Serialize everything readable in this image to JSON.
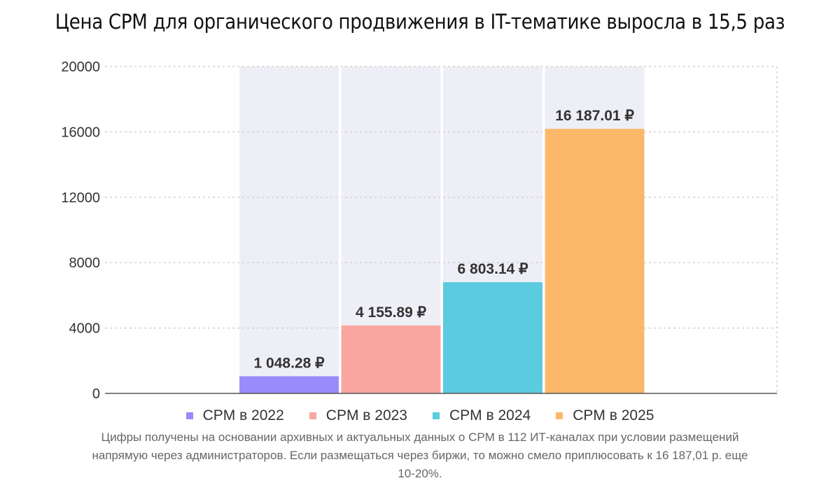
{
  "title": "Цена CPM для органического продвижения в IT-тематике выросла в 15,5 раз",
  "chart_data": {
    "type": "bar",
    "title": "Цена CPM для органического продвижения в IT-тематике выросла в 15,5 раз",
    "xlabel": "",
    "ylabel": "",
    "ylim": [
      0,
      20000
    ],
    "yticks": [
      0,
      4000,
      8000,
      12000,
      16000,
      20000
    ],
    "ytick_labels": [
      "0",
      "4000",
      "8000",
      "12000",
      "16000",
      "20000"
    ],
    "grid": true,
    "legend_position": "bottom",
    "series": [
      {
        "name": "CPM в 2022",
        "value": 1048.28,
        "label": "1 048.28 ₽",
        "color": "#9b8afb"
      },
      {
        "name": "CPM в 2023",
        "value": 4155.89,
        "label": "4 155.89 ₽",
        "color": "#f9a6a0"
      },
      {
        "name": "CPM в 2024",
        "value": 6803.14,
        "label": "6 803.14 ₽",
        "color": "#5ccbe0"
      },
      {
        "name": "CPM в 2025",
        "value": 16187.01,
        "label": "16 187.01 ₽",
        "color": "#fbb86a"
      }
    ]
  },
  "footnote": "Цифры получены на основании архивных и актуальных данных о CPM в 112 ИТ-каналах при условии размещений напрямую через администраторов. Если размещаться через биржи, то можно смело приплюсовать к 16 187,01 р. еще 10-20%."
}
